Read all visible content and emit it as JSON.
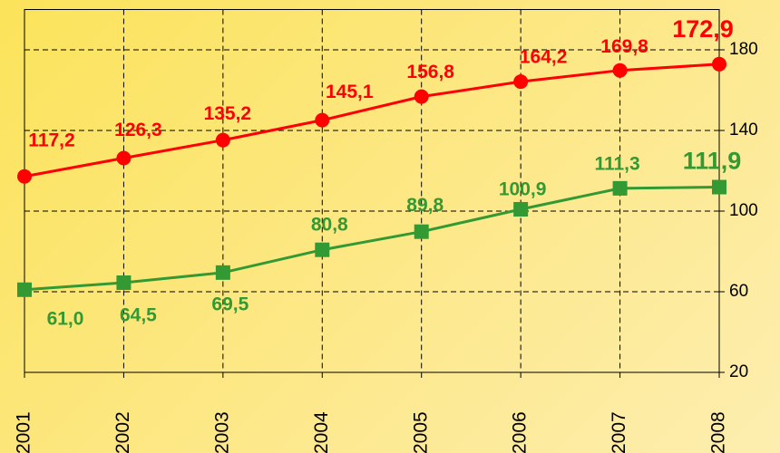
{
  "chart_data": {
    "type": "line",
    "x": [
      2001,
      2002,
      2003,
      2004,
      2005,
      2006,
      2007,
      2008
    ],
    "xlim": [
      2001,
      2008
    ],
    "xticks": [
      2001,
      2002,
      2003,
      2004,
      2005,
      2006,
      2007,
      2008
    ],
    "ylim": [
      20,
      200
    ],
    "yticks": [
      20,
      60,
      100,
      140,
      180
    ],
    "y_axis_side": "right",
    "grid": true,
    "series": [
      {
        "color": "#ff0000",
        "marker": "circle",
        "values": [
          117.2,
          126.3,
          135.2,
          145.1,
          156.8,
          164.2,
          169.8,
          172.9
        ],
        "value_labels": [
          "117,2",
          "126,3",
          "135,2",
          "145,1",
          "156,8",
          "164,2",
          "169,8",
          "172,9"
        ]
      },
      {
        "color": "#339933",
        "marker": "square",
        "values": [
          61.0,
          64.5,
          69.5,
          80.8,
          89.8,
          100.9,
          111.3,
          111.9
        ],
        "value_labels": [
          "61,0",
          "64,5",
          "69,5",
          "80,8",
          "89,8",
          "100,9",
          "111,3",
          "111,9"
        ]
      }
    ]
  }
}
